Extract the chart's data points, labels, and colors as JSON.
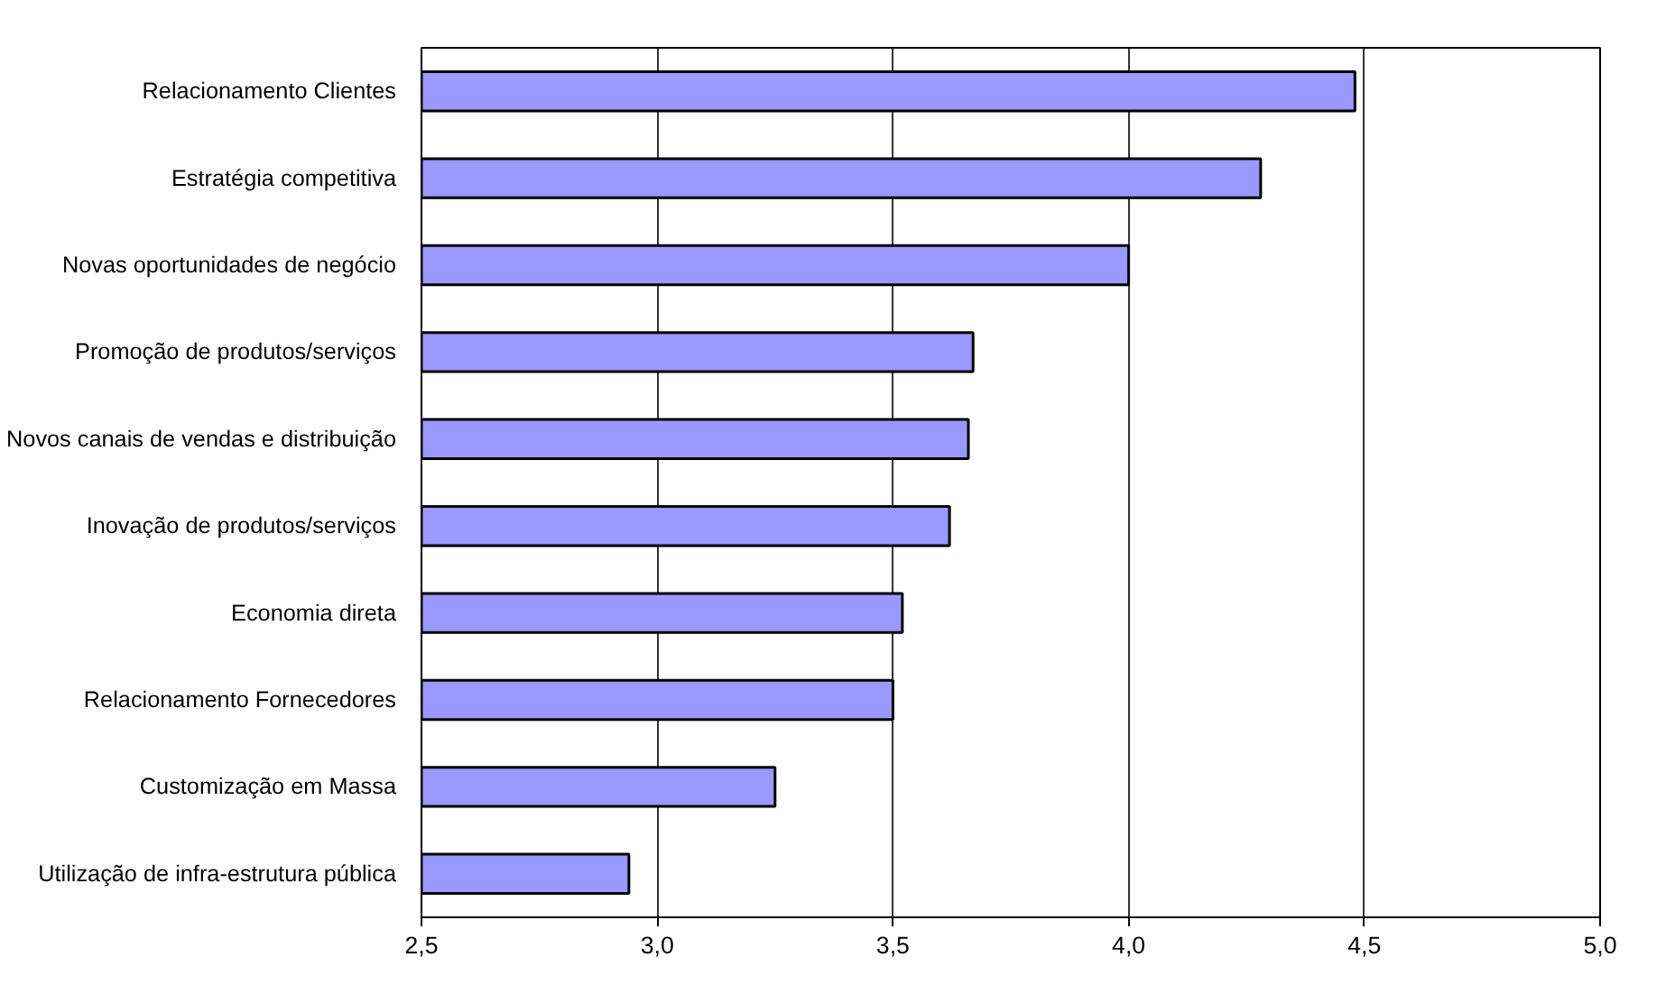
{
  "chart_data": {
    "type": "bar",
    "orientation": "horizontal",
    "categories": [
      "Relacionamento Clientes",
      "Estratégia competitiva",
      "Novas oportunidades de negócio",
      "Promoção de produtos/serviços",
      "Novos canais de vendas e distribuição",
      "Inovação de produtos/serviços",
      "Economia direta",
      "Relacionamento Fornecedores",
      "Customização em Massa",
      "Utilização de infra-estrutura pública"
    ],
    "values": [
      4.48,
      4.28,
      4.0,
      3.67,
      3.66,
      3.62,
      3.52,
      3.5,
      3.25,
      2.94
    ],
    "color": "#9999ff",
    "xlim": [
      2.5,
      5.0
    ],
    "xticks": [
      {
        "value": 2.5,
        "label": "2,5"
      },
      {
        "value": 3.0,
        "label": "3,0"
      },
      {
        "value": 3.5,
        "label": "3,5"
      },
      {
        "value": 4.0,
        "label": "4,0"
      },
      {
        "value": 4.5,
        "label": "4,5"
      },
      {
        "value": 5.0,
        "label": "5,0"
      }
    ],
    "grid": "x"
  }
}
